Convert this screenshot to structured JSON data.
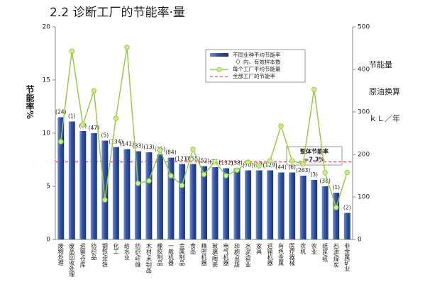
{
  "chart_data": {
    "type": "bar",
    "title": "2.2 诊断工厂的节能率·量",
    "y_label": "节能率%",
    "y2_label_lines": [
      "节能量",
      "原油换算",
      "ｋＬ／年"
    ],
    "categories": [
      "废物处理",
      "废品回收处理",
      "运输/仓库",
      "纺织品",
      "钢铁/非铁",
      "化工",
      "给水业",
      "纺织/纤维",
      "木材/木制品",
      "橡胶制品",
      "一般机器",
      "金属制品",
      "食品",
      "精密机器",
      "玻璃/陶瓷",
      "电气机器",
      "印刷/出版",
      "水泥/窑业",
      "家具",
      "运输机器",
      "有色金属",
      "医疗器械",
      "农机",
      "农业",
      "纸浆/纸",
      "石油/煤炭",
      "非金属矿业"
    ],
    "series": [
      {
        "name": "不同业种平均节能率",
        "color": "#2f4f9e",
        "values": [
          11.5,
          11.1,
          10.2,
          10.0,
          9.3,
          8.7,
          8.5,
          8.3,
          8.2,
          8.0,
          7.7,
          7.1,
          7.1,
          6.9,
          6.8,
          6.7,
          6.7,
          6.5,
          6.5,
          6.5,
          6.3,
          6.3,
          6.0,
          5.6,
          5.0,
          4.4,
          2.5
        ],
        "value_labels": [
          "(24)",
          "(1)",
          "(8)",
          "(47)",
          "(5)",
          "(134)",
          "(141)",
          "(33)",
          "(13)",
          "(25)",
          "(84)",
          "(121)",
          "(155)",
          "(52)",
          "(31)",
          "(132)",
          "(38)",
          "(70)",
          "(27)",
          "(129)",
          "(44)",
          "(6)",
          "(263)",
          "(3)",
          "(38)",
          "(1)",
          "(2)"
        ]
      },
      {
        "name": "每个工厂平均节能量",
        "color": "#99cc44",
        "type": "line",
        "axis": "y2",
        "values": [
          230,
          443,
          270,
          350,
          93,
          285,
          452,
          132,
          138,
          210,
          150,
          127,
          212,
          153,
          183,
          150,
          163,
          182,
          173,
          185,
          267,
          185,
          178,
          353,
          157,
          75,
          158
        ]
      }
    ],
    "legend_note": "（）内、有效样本数",
    "reference": {
      "name": "全部工厂的节能率",
      "value": 7.3,
      "color": "#e03030",
      "annotation": [
        "整体节能率",
        "=7.3%"
      ]
    },
    "ylim": [
      0,
      20
    ],
    "yticks": [
      0,
      5,
      10,
      15,
      20
    ],
    "y2lim": [
      0,
      500
    ],
    "y2ticks": [
      0,
      100,
      200,
      300,
      400,
      500
    ],
    "legend": "upper center"
  }
}
